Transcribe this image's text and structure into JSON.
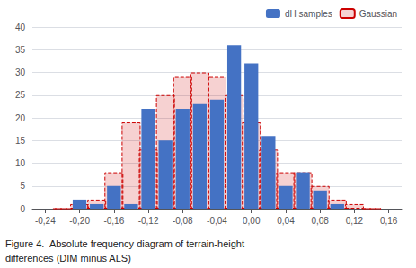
{
  "chart_data": {
    "type": "bar",
    "x": [
      -0.22,
      -0.2,
      -0.18,
      -0.16,
      -0.14,
      -0.12,
      -0.1,
      -0.08,
      -0.06,
      -0.04,
      -0.02,
      0.0,
      0.02,
      0.04,
      0.06,
      0.08,
      0.1,
      0.12,
      0.14
    ],
    "series": [
      {
        "name": "dH samples",
        "color": "#4472C4",
        "values": [
          0,
          2,
          1,
          5,
          1,
          22,
          15,
          22,
          23,
          24,
          36,
          32,
          16,
          5,
          8,
          4,
          1,
          0,
          0
        ]
      },
      {
        "name": "Gaussian",
        "color": "#CC0000",
        "line_style": "dashed",
        "values": [
          0,
          1,
          2,
          8,
          19,
          13,
          25,
          29,
          30,
          29,
          25,
          19,
          13,
          8,
          8,
          5,
          2,
          1,
          0
        ]
      }
    ],
    "xlim": [
      -0.255,
      0.175
    ],
    "ylim": [
      0,
      40
    ],
    "xticks": [
      {
        "value": -0.24,
        "label": "-0,24"
      },
      {
        "value": -0.2,
        "label": "-0,20"
      },
      {
        "value": -0.16,
        "label": "-0,16"
      },
      {
        "value": -0.12,
        "label": "-0,12"
      },
      {
        "value": -0.08,
        "label": "-0,08"
      },
      {
        "value": -0.04,
        "label": "-0,04"
      },
      {
        "value": 0.0,
        "label": "0,00"
      },
      {
        "value": 0.04,
        "label": "0,04"
      },
      {
        "value": 0.08,
        "label": "0,08"
      },
      {
        "value": 0.12,
        "label": "0,12"
      },
      {
        "value": 0.16,
        "label": "0,16"
      }
    ],
    "yticks": [
      0,
      5,
      10,
      15,
      20,
      25,
      30,
      35,
      40
    ],
    "grid": true,
    "legend": "upper right",
    "annotations": [
      "Figure 4.  Absolute frequency diagram of terrain-height",
      "differences (DIM minus ALS)"
    ]
  }
}
